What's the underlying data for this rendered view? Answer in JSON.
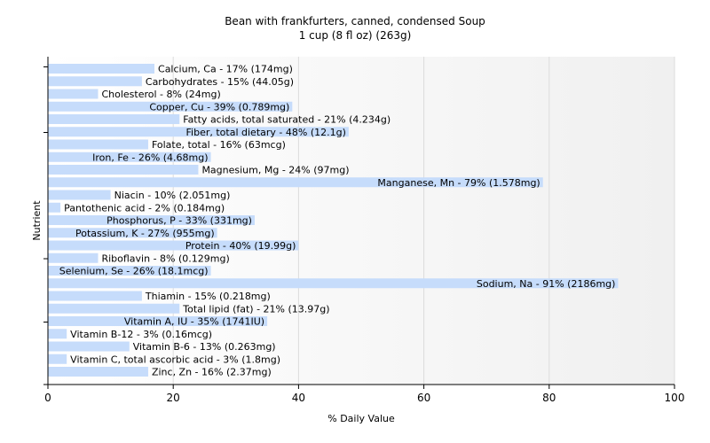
{
  "chart_data": {
    "type": "bar",
    "orientation": "horizontal",
    "title": "Bean with frankfurters, canned, condensed Soup",
    "subtitle": "1 cup (8 fl oz) (263g)",
    "xlabel": "% Daily Value",
    "ylabel": "Nutrient",
    "xlim": [
      0,
      100
    ],
    "x_ticks": [
      "0",
      "20",
      "40",
      "60",
      "80",
      "100"
    ],
    "grid": true,
    "bar_color": "#c6dcfb",
    "categories": [
      "Calcium, Ca",
      "Carbohydrates",
      "Cholesterol",
      "Copper, Cu",
      "Fatty acids, total saturated",
      "Fiber, total dietary",
      "Folate, total",
      "Iron, Fe",
      "Magnesium, Mg",
      "Manganese, Mn",
      "Niacin",
      "Pantothenic acid",
      "Phosphorus, P",
      "Potassium, K",
      "Protein",
      "Riboflavin",
      "Selenium, Se",
      "Sodium, Na",
      "Thiamin",
      "Total lipid (fat)",
      "Vitamin A, IU",
      "Vitamin B-12",
      "Vitamin B-6",
      "Vitamin C, total ascorbic acid",
      "Zinc, Zn"
    ],
    "values": [
      17,
      15,
      8,
      39,
      21,
      48,
      16,
      26,
      24,
      79,
      10,
      2,
      33,
      27,
      40,
      8,
      26,
      91,
      15,
      21,
      35,
      3,
      13,
      3,
      16
    ],
    "labels": [
      "Calcium, Ca - 17% (174mg)",
      "Carbohydrates - 15% (44.05g)",
      "Cholesterol - 8% (24mg)",
      "Copper, Cu - 39% (0.789mg)",
      "Fatty acids, total saturated - 21% (4.234g)",
      "Fiber, total dietary - 48% (12.1g)",
      "Folate, total - 16% (63mcg)",
      "Iron, Fe - 26% (4.68mg)",
      "Magnesium, Mg - 24% (97mg)",
      "Manganese, Mn - 79% (1.578mg)",
      "Niacin - 10% (2.051mg)",
      "Pantothenic acid - 2% (0.184mg)",
      "Phosphorus, P - 33% (331mg)",
      "Potassium, K - 27% (955mg)",
      "Protein - 40% (19.99g)",
      "Riboflavin - 8% (0.129mg)",
      "Selenium, Se - 26% (18.1mcg)",
      "Sodium, Na - 91% (2186mg)",
      "Thiamin - 15% (0.218mg)",
      "Total lipid (fat) - 21% (13.97g)",
      "Vitamin A, IU - 35% (1741IU)",
      "Vitamin B-12 - 3% (0.16mcg)",
      "Vitamin B-6 - 13% (0.263mg)",
      "Vitamin C, total ascorbic acid - 3% (1.8mg)",
      "Zinc, Zn - 16% (2.37mg)"
    ]
  }
}
